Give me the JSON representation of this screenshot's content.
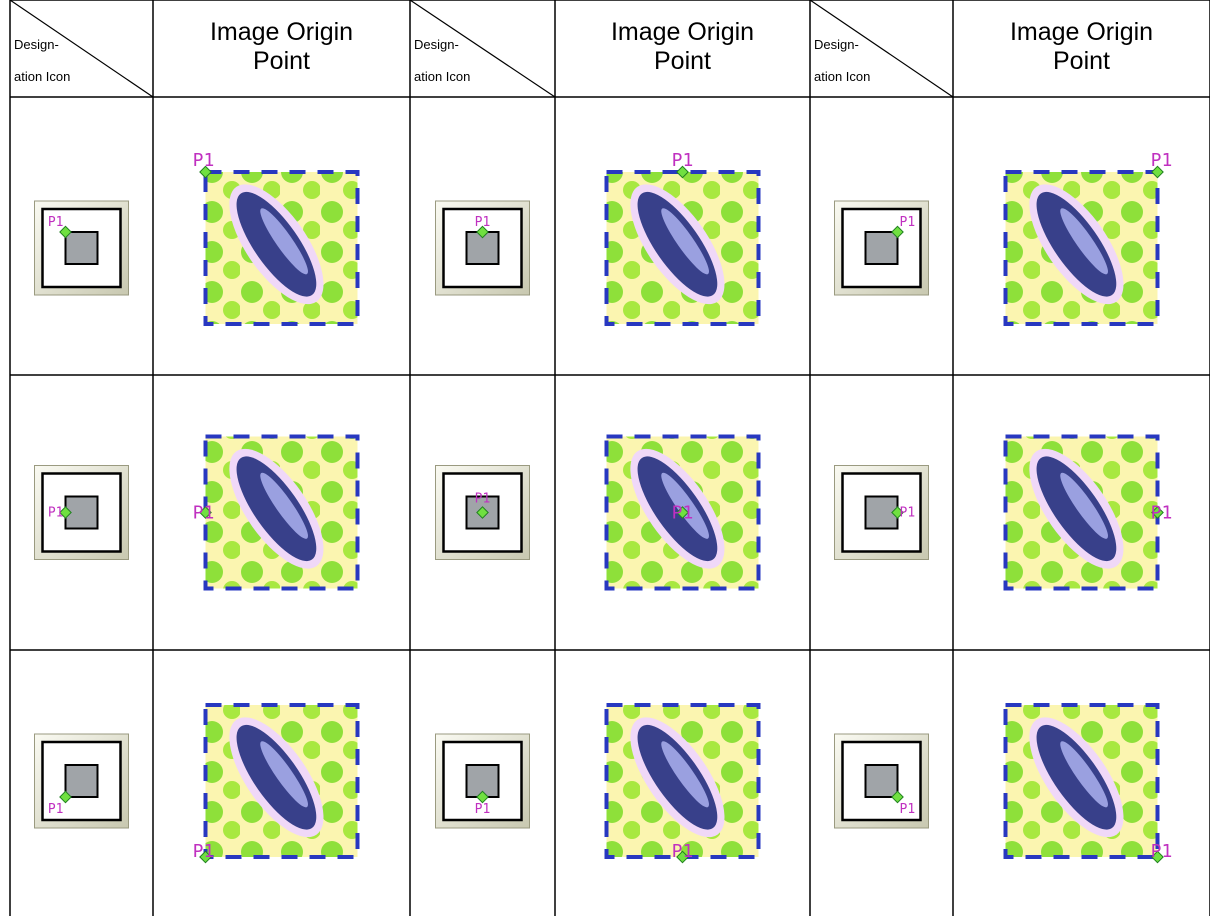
{
  "header": [
    {
      "designation": [
        "Design-",
        "ation Icon"
      ],
      "image_origin": "Image Origin Point"
    },
    {
      "designation": [
        "Design-",
        "ation Icon"
      ],
      "image_origin": "Image Origin Point"
    },
    {
      "designation": [
        "Design-",
        "ation Icon"
      ],
      "image_origin": "Image Origin Point"
    }
  ],
  "rows": [
    [
      {
        "icon_label": "P1",
        "image_label": "P1"
      },
      {
        "icon_label": "P1",
        "image_label": "P1"
      },
      {
        "icon_label": "P1",
        "image_label": "P1"
      }
    ],
    [
      {
        "icon_label": "P1",
        "image_label": "P1"
      },
      {
        "icon_label": "P1",
        "image_label": "P1"
      },
      {
        "icon_label": "P1",
        "image_label": "P1"
      }
    ],
    [
      {
        "icon_label": "P1",
        "image_label": "P1"
      },
      {
        "icon_label": "P1",
        "image_label": "P1"
      },
      {
        "icon_label": "P1",
        "image_label": "P1"
      }
    ]
  ]
}
